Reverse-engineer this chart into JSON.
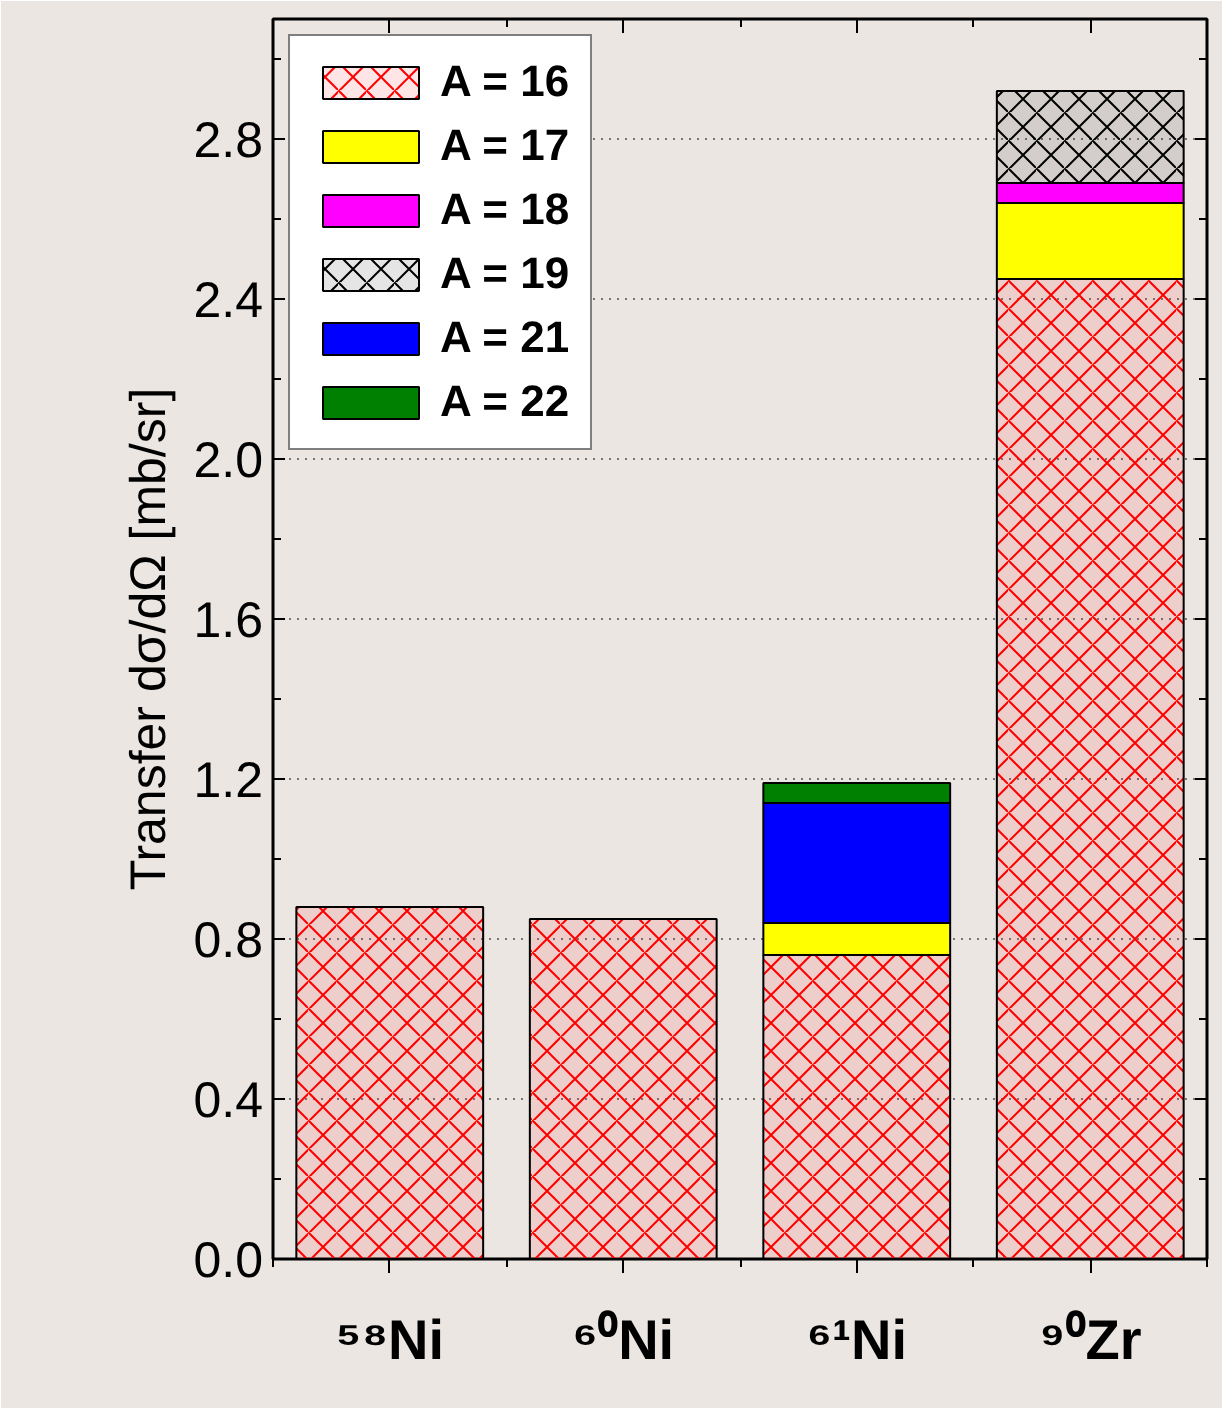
{
  "chart_data": {
    "type": "bar",
    "stacked": true,
    "ylabel": "Transfer dσ/dΩ [mb/sr]",
    "categories": [
      "⁵⁸Ni",
      "⁶⁰Ni",
      "⁶¹Ni",
      "⁹⁰Zr"
    ],
    "series": [
      {
        "name": "A = 16",
        "color": "#ff0000",
        "values": [
          0.88,
          0.85,
          0.76,
          2.45
        ]
      },
      {
        "name": "A = 17",
        "color": "#ffff00",
        "values": [
          null,
          null,
          0.08,
          0.19
        ]
      },
      {
        "name": "A = 18",
        "color": "#ff00ff",
        "values": [
          null,
          null,
          null,
          0.05
        ]
      },
      {
        "name": "A = 19",
        "color": "#000000",
        "values": [
          null,
          null,
          null,
          0.23
        ]
      },
      {
        "name": "A = 21",
        "color": "#0000ff",
        "values": [
          null,
          null,
          0.3,
          null
        ]
      },
      {
        "name": "A = 22",
        "color": "#008000",
        "values": [
          null,
          null,
          0.05,
          null
        ]
      }
    ],
    "ylim": [
      0,
      3.1
    ],
    "yticks": [
      {
        "value": 0,
        "label": "0.0"
      },
      {
        "value": 0.4,
        "label": "0.4"
      },
      {
        "value": 0.8,
        "label": "0.8"
      },
      {
        "value": 1.2,
        "label": "1.2"
      },
      {
        "value": 1.6,
        "label": "1.6"
      },
      {
        "value": 2.0,
        "label": "2.0"
      },
      {
        "value": 2.4,
        "label": "2.4"
      },
      {
        "value": 2.8,
        "label": "2.8"
      }
    ],
    "grid": "y",
    "legend": "top left"
  }
}
